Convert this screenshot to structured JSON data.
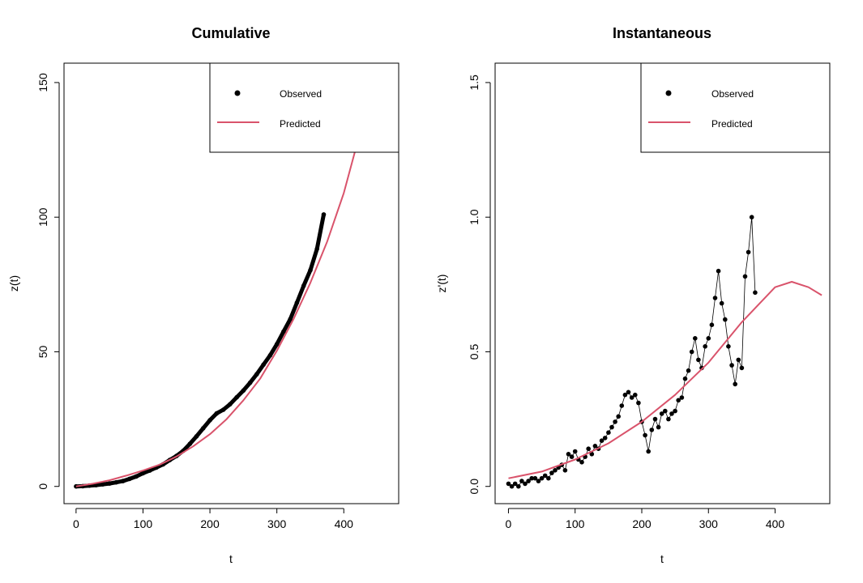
{
  "colors": {
    "predicted": "#d9536b",
    "observed": "#000000",
    "background": "#ffffff"
  },
  "chart_data": [
    {
      "type": "line",
      "title": "Cumulative",
      "xlabel": "t",
      "ylabel": "z(t)",
      "xlim": [
        -18,
        482
      ],
      "ylim": [
        -6.4,
        157.2
      ],
      "xticks": [
        0,
        100,
        200,
        300,
        400
      ],
      "yticks": [
        0,
        50,
        100,
        150
      ],
      "grid": false,
      "legend": {
        "position": "top-right",
        "entries": [
          "Observed",
          "Predicted"
        ]
      },
      "series": [
        {
          "name": "Observed",
          "style": "points",
          "x": [
            0,
            10,
            20,
            30,
            40,
            50,
            60,
            70,
            80,
            90,
            100,
            110,
            120,
            130,
            140,
            150,
            160,
            170,
            180,
            190,
            200,
            210,
            220,
            230,
            240,
            250,
            260,
            270,
            280,
            290,
            300,
            310,
            320,
            330,
            340,
            350,
            360,
            370
          ],
          "y": [
            0,
            0.1,
            0.3,
            0.5,
            0.8,
            1.1,
            1.5,
            2.0,
            2.8,
            3.7,
            4.9,
            5.9,
            7.0,
            8.2,
            9.8,
            11.3,
            13.2,
            15.8,
            18.6,
            21.6,
            24.6,
            27.1,
            28.5,
            30.5,
            33.1,
            35.6,
            38.5,
            41.7,
            45.2,
            48.7,
            52.8,
            57.5,
            62.1,
            68.2,
            74.5,
            80.3,
            88.2,
            101.0
          ]
        },
        {
          "name": "Predicted",
          "style": "line",
          "x": [
            0,
            25,
            50,
            75,
            100,
            125,
            150,
            175,
            200,
            225,
            250,
            275,
            300,
            325,
            350,
            375,
            400,
            425,
            450
          ],
          "y": [
            0.0,
            1.0,
            2.3,
            4.0,
            5.9,
            8.1,
            11.1,
            14.9,
            19.4,
            25.0,
            32.0,
            40.0,
            50.4,
            62.2,
            75.6,
            90.8,
            109.0,
            132.0,
            156.0
          ]
        }
      ]
    },
    {
      "type": "line",
      "title": "Instantaneous",
      "xlabel": "t",
      "ylabel": "z'(t)",
      "xlim": [
        -20,
        482
      ],
      "ylim": [
        -0.064,
        1.572
      ],
      "xticks": [
        0,
        100,
        200,
        300,
        400
      ],
      "yticks": [
        0.0,
        0.5,
        1.0,
        1.5
      ],
      "ytick_labels": [
        "0.0",
        "0.5",
        "1.0",
        "1.5"
      ],
      "grid": false,
      "legend": {
        "position": "top-right",
        "entries": [
          "Observed",
          "Predicted"
        ]
      },
      "series": [
        {
          "name": "Observed",
          "style": "points",
          "x": [
            0,
            5,
            10,
            15,
            20,
            25,
            30,
            35,
            40,
            45,
            50,
            55,
            60,
            65,
            70,
            75,
            80,
            85,
            90,
            95,
            100,
            105,
            110,
            115,
            120,
            125,
            130,
            135,
            140,
            145,
            150,
            155,
            160,
            165,
            170,
            175,
            180,
            185,
            190,
            195,
            200,
            205,
            210,
            215,
            220,
            225,
            230,
            235,
            240,
            245,
            250,
            255,
            260,
            265,
            270,
            275,
            280,
            285,
            290,
            295,
            300,
            305,
            310,
            315,
            320,
            325,
            330,
            335,
            340,
            345,
            350,
            355,
            360,
            365,
            370
          ],
          "y": [
            0.01,
            0.0,
            0.01,
            0.0,
            0.02,
            0.01,
            0.02,
            0.03,
            0.03,
            0.02,
            0.03,
            0.04,
            0.03,
            0.05,
            0.06,
            0.07,
            0.08,
            0.06,
            0.12,
            0.11,
            0.13,
            0.1,
            0.09,
            0.11,
            0.14,
            0.12,
            0.15,
            0.14,
            0.17,
            0.18,
            0.2,
            0.22,
            0.24,
            0.26,
            0.3,
            0.34,
            0.35,
            0.33,
            0.34,
            0.31,
            0.24,
            0.19,
            0.13,
            0.21,
            0.25,
            0.22,
            0.27,
            0.28,
            0.25,
            0.27,
            0.28,
            0.32,
            0.33,
            0.4,
            0.43,
            0.5,
            0.55,
            0.47,
            0.44,
            0.52,
            0.55,
            0.6,
            0.7,
            0.8,
            0.68,
            0.62,
            0.52,
            0.45,
            0.38,
            0.47,
            0.44,
            0.78,
            0.87,
            1.0,
            0.72
          ]
        },
        {
          "name": "Predicted",
          "style": "line",
          "x": [
            0,
            50,
            100,
            150,
            200,
            250,
            300,
            350,
            400,
            425,
            450,
            470
          ],
          "y": [
            0.03,
            0.055,
            0.1,
            0.16,
            0.24,
            0.34,
            0.46,
            0.61,
            0.74,
            0.76,
            0.74,
            0.71
          ]
        }
      ]
    }
  ]
}
